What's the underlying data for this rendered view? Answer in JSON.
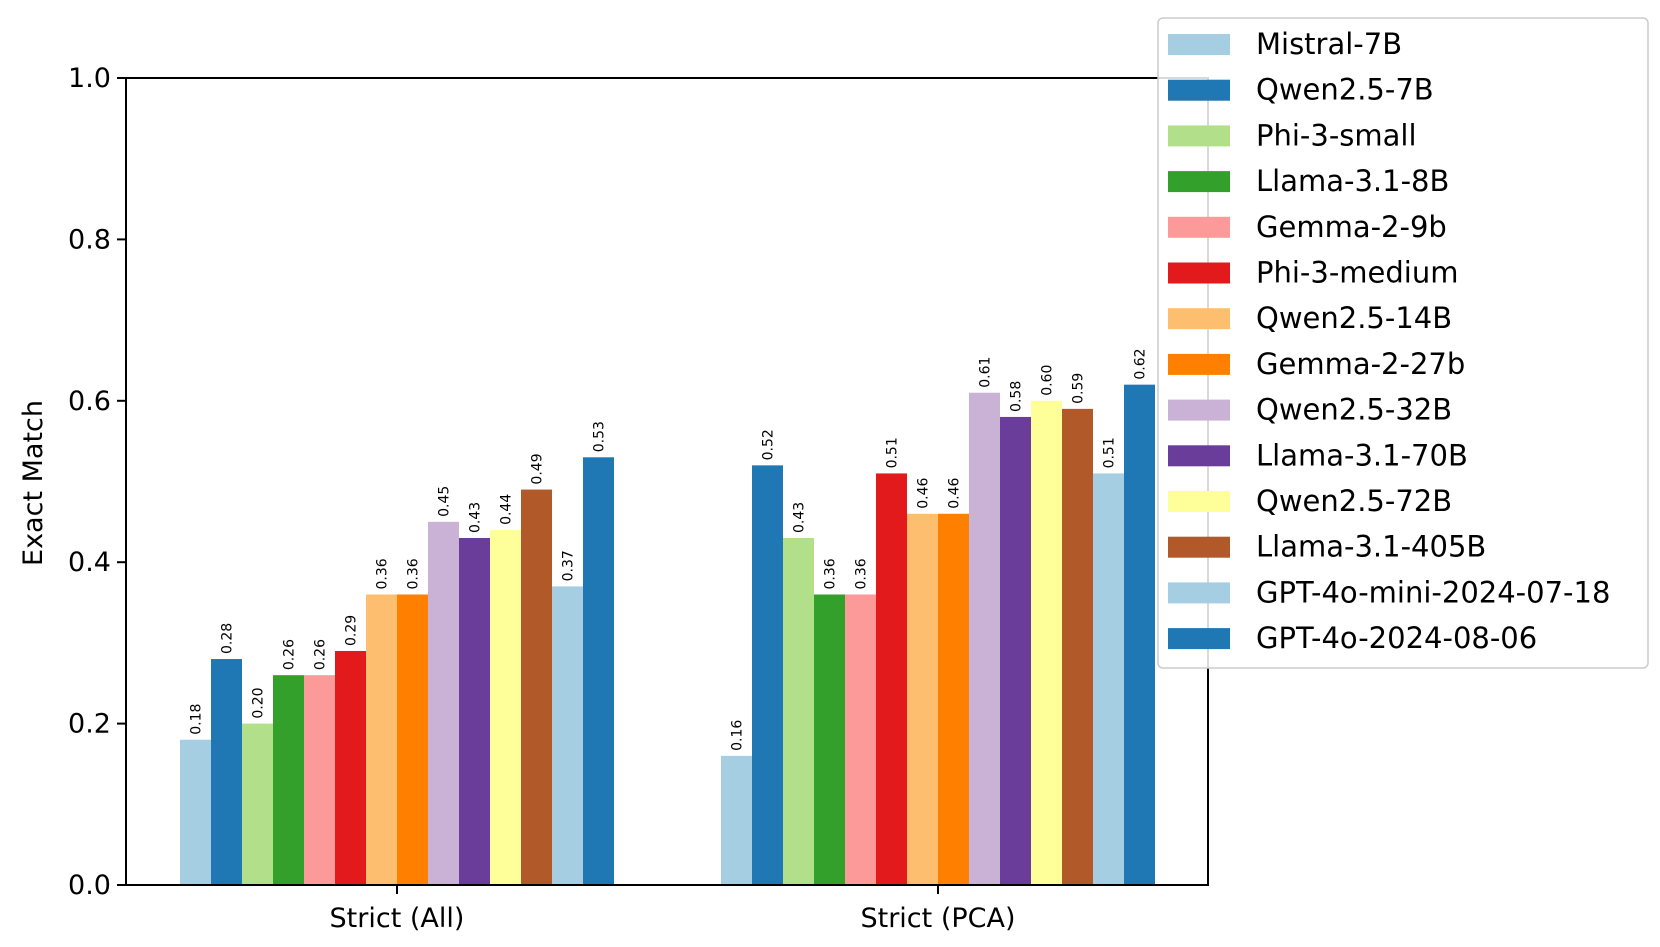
{
  "chart_data": {
    "type": "bar",
    "title": "",
    "xlabel": "",
    "ylabel": "Exact Match",
    "ylim": [
      0,
      1.0
    ],
    "yticks": [
      "0.0",
      "0.2",
      "0.4",
      "0.6",
      "0.8",
      "1.0"
    ],
    "categories": [
      "Strict (All)",
      "Strict (PCA)"
    ],
    "grid": false,
    "legend_position": "top-right",
    "series": [
      {
        "name": "Mistral-7B",
        "color": "#a6cee3",
        "values": [
          0.18,
          0.16
        ],
        "labels": [
          "0.18",
          "0.16"
        ]
      },
      {
        "name": "Qwen2.5-7B",
        "color": "#1f78b4",
        "values": [
          0.28,
          0.52
        ],
        "labels": [
          "0.28",
          "0.52"
        ]
      },
      {
        "name": "Phi-3-small",
        "color": "#b2df8a",
        "values": [
          0.2,
          0.43
        ],
        "labels": [
          "0.20",
          "0.43"
        ]
      },
      {
        "name": "Llama-3.1-8B",
        "color": "#33a02c",
        "values": [
          0.26,
          0.36
        ],
        "labels": [
          "0.26",
          "0.36"
        ]
      },
      {
        "name": "Gemma-2-9b",
        "color": "#fb9a99",
        "values": [
          0.26,
          0.36
        ],
        "labels": [
          "0.26",
          "0.36"
        ]
      },
      {
        "name": "Phi-3-medium",
        "color": "#e31a1c",
        "values": [
          0.29,
          0.51
        ],
        "labels": [
          "0.29",
          "0.51"
        ]
      },
      {
        "name": "Qwen2.5-14B",
        "color": "#fdbf6f",
        "values": [
          0.36,
          0.46
        ],
        "labels": [
          "0.36",
          "0.46"
        ]
      },
      {
        "name": "Gemma-2-27b",
        "color": "#ff7f00",
        "values": [
          0.36,
          0.46
        ],
        "labels": [
          "0.36",
          "0.46"
        ]
      },
      {
        "name": "Qwen2.5-32B",
        "color": "#cab2d6",
        "values": [
          0.45,
          0.61
        ],
        "labels": [
          "0.45",
          "0.61"
        ]
      },
      {
        "name": "Llama-3.1-70B",
        "color": "#6a3d9a",
        "values": [
          0.43,
          0.58
        ],
        "labels": [
          "0.43",
          "0.58"
        ]
      },
      {
        "name": "Qwen2.5-72B",
        "color": "#ffff99",
        "values": [
          0.44,
          0.6
        ],
        "labels": [
          "0.44",
          "0.60"
        ]
      },
      {
        "name": "Llama-3.1-405B",
        "color": "#b15928",
        "values": [
          0.49,
          0.59
        ],
        "labels": [
          "0.49",
          "0.59"
        ]
      },
      {
        "name": "GPT-4o-mini-2024-07-18",
        "color": "#a6cee3",
        "values": [
          0.37,
          0.51
        ],
        "labels": [
          "0.37",
          "0.51"
        ]
      },
      {
        "name": "GPT-4o-2024-08-06",
        "color": "#1f78b4",
        "values": [
          0.53,
          0.62
        ],
        "labels": [
          "0.53",
          "0.62"
        ]
      }
    ]
  }
}
